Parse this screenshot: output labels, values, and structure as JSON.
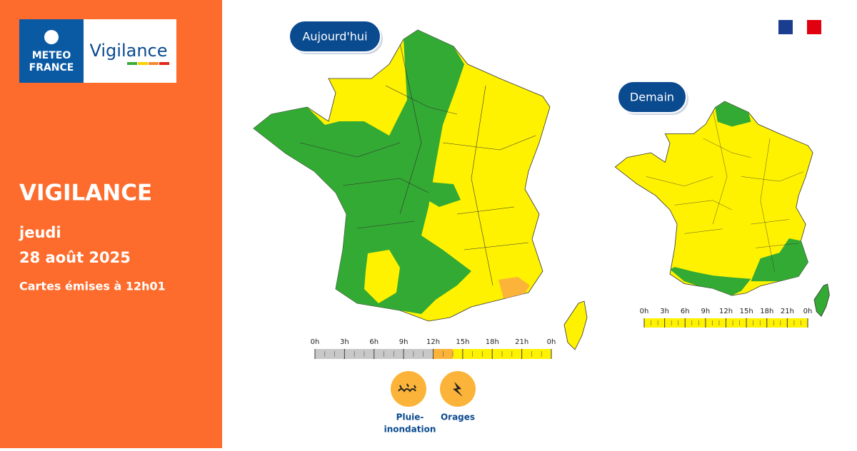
{
  "logo": {
    "brand": [
      "METEO",
      "FRANCE"
    ],
    "product": "Vigilance"
  },
  "sidebar": {
    "title": "VIGILANCE",
    "day": "jeudi",
    "date": "28 août 2025",
    "issued": "Cartes émises à 12h01"
  },
  "maps": [
    {
      "label": "Aujourd'hui",
      "timeline": {
        "range": [
          0,
          24
        ],
        "ticks": [
          "0h",
          "3h",
          "6h",
          "9h",
          "12h",
          "15h",
          "18h",
          "21h",
          "0h"
        ],
        "segments": [
          {
            "from": 0,
            "to": 12,
            "color": "#c8c8c8"
          },
          {
            "from": 12,
            "to": 14,
            "color": "#fbb339"
          },
          {
            "from": 14,
            "to": 24,
            "color": "#fff200"
          }
        ]
      }
    },
    {
      "label": "Demain",
      "timeline": {
        "range": [
          0,
          24
        ],
        "ticks": [
          "0h",
          "3h",
          "6h",
          "9h",
          "12h",
          "15h",
          "18h",
          "21h",
          "0h"
        ],
        "segments": [
          {
            "from": 0,
            "to": 24,
            "color": "#fff200"
          }
        ]
      }
    }
  ],
  "hazards": [
    {
      "label": [
        "Pluie-",
        "inondation"
      ]
    },
    {
      "label": [
        "Orages"
      ]
    }
  ]
}
